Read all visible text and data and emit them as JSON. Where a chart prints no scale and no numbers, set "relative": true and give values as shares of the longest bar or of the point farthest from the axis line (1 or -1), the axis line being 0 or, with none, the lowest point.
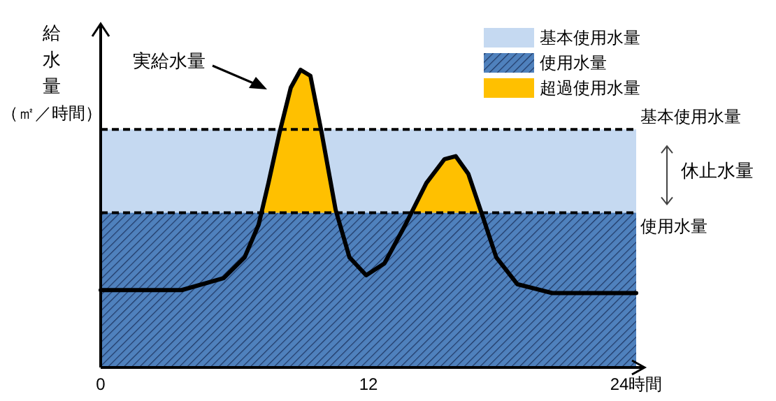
{
  "chart_data": {
    "type": "line",
    "relative": true,
    "ylabel": "給水量（㎡／時間）",
    "x": [
      0,
      3.63,
      5.51,
      6.45,
      7.08,
      7.52,
      8.02,
      8.52,
      8.96,
      9.4,
      9.9,
      10.53,
      11.15,
      11.9,
      12.72,
      13.66,
      14.6,
      15.41,
      15.91,
      16.48,
      17.11,
      17.73,
      18.67,
      20.24,
      24
    ],
    "xlim": [
      0,
      24
    ],
    "xticks": [
      0,
      12,
      {
        "value": 24,
        "label": "24時間"
      }
    ],
    "series": [
      {
        "type": "area",
        "name": "超過使用水量",
        "color": "#ffc000",
        "x": [
          7.21,
          7.52,
          8.02,
          8.52,
          8.96,
          9.4,
          9.9,
          10.53,
          10.57,
          12,
          13.93,
          14.6,
          15.41,
          15.91,
          16.48,
          17.07
        ],
        "values": [
          0.52,
          0.62,
          0.79,
          0.94,
          1,
          0.98,
          0.79,
          0.53,
          0.52,
          null,
          0.52,
          0.62,
          0.7,
          0.71,
          0.65,
          0.52
        ]
      },
      {
        "name": "実給水量",
        "color": "#000000",
        "values": [
          0.26,
          0.26,
          0.3,
          0.37,
          0.48,
          0.62,
          0.79,
          0.94,
          1,
          0.98,
          0.79,
          0.53,
          0.37,
          0.31,
          0.35,
          0.48,
          0.62,
          0.7,
          0.71,
          0.65,
          0.51,
          0.37,
          0.28,
          0.25,
          0.25
        ]
      }
    ],
    "bands": [
      {
        "axis": "y",
        "from": 0.52,
        "to": 0.8,
        "label": "基本使用水量",
        "color": "#c5d9f1"
      },
      {
        "axis": "y",
        "from": 0,
        "to": 0.52,
        "label": "使用水量",
        "color": "#4f81bd"
      }
    ],
    "ref_lines": [
      {
        "axis": "y",
        "value": 0.8,
        "label": "基本使用水量",
        "line_style": "dashed",
        "color": "#000000"
      },
      {
        "axis": "y",
        "value": 0.52,
        "label": "使用水量",
        "line_style": "dashed",
        "color": "#000000"
      }
    ],
    "annotations": [
      "休止水量"
    ],
    "legend": "top right",
    "grid": false,
    "marker": "none",
    "line_style": "solid"
  }
}
